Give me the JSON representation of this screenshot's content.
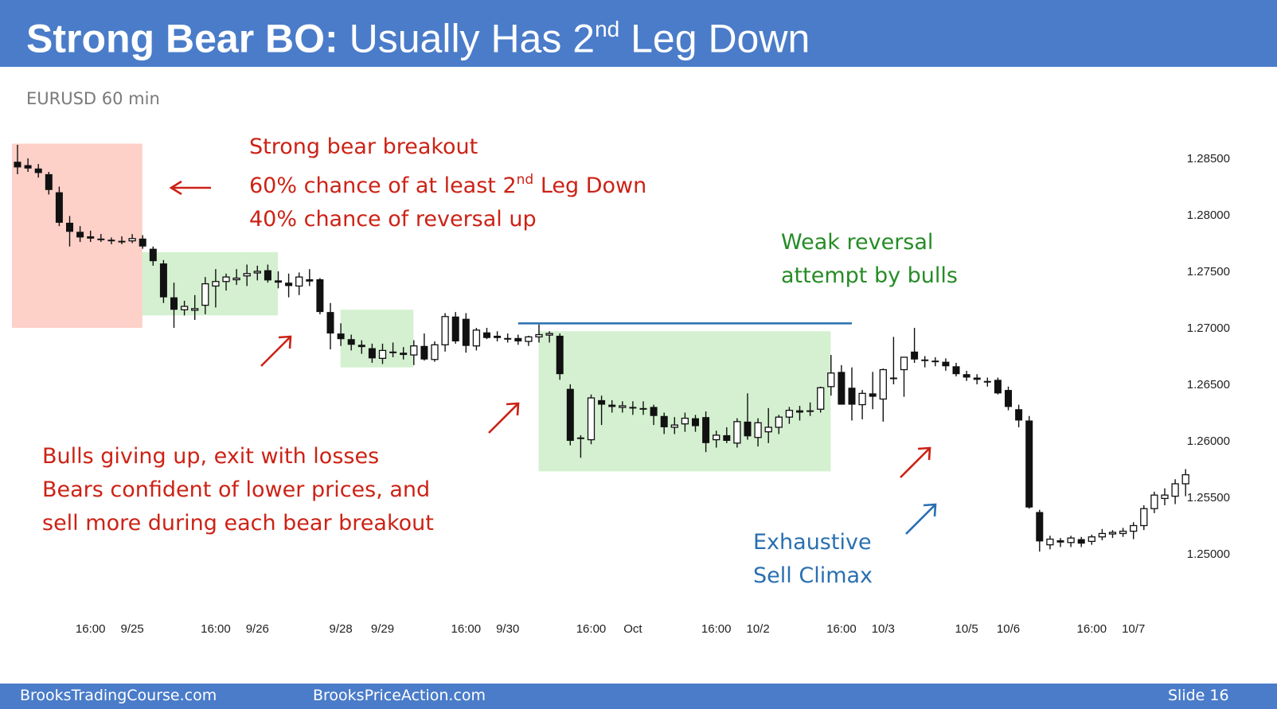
{
  "header": {
    "title_bold": "Strong Bear BO:",
    "title_rest": "Usually Has 2",
    "title_sup": "nd",
    "title_end": "Leg Down"
  },
  "subtitle": "EURUSD 60 min",
  "annotations": {
    "breakout_line1": "Strong bear breakout",
    "breakout_line2_pre": "60% chance of at least 2",
    "breakout_line2_sup": "nd",
    "breakout_line2_post": "Leg Down",
    "breakout_line3": "40% chance of reversal up",
    "weak_line1": "Weak reversal",
    "weak_line2": "attempt by bulls",
    "bulls_line1": "Bulls giving up, exit with losses",
    "bulls_line2": "Bears confident of lower prices, and",
    "bulls_line3": "sell more during each bear breakout",
    "climax_line1": "Exhaustive",
    "climax_line2": "Sell Climax"
  },
  "footer": {
    "left": "BrooksTradingCourse.com",
    "mid": "BrooksPriceAction.com",
    "right": "Slide  16"
  },
  "colors": {
    "header_bg": "#4a7cc9",
    "red_zone": "#fdd0c8",
    "green_zone": "#d4f0d0",
    "resistance_line": "#2a6fb0",
    "red_text": "#cc2216",
    "green_text": "#268c26",
    "blue_text": "#2a6fb0"
  },
  "chart_data": {
    "type": "candlestick",
    "ylim": [
      1.2475,
      1.2868
    ],
    "y_ticks": [
      1.285,
      1.28,
      1.275,
      1.27,
      1.265,
      1.26,
      1.255,
      1.25
    ],
    "y_tick_labels": [
      "1.28500",
      "1.28000",
      "1.27500",
      "1.27000",
      "1.26500",
      "1.26000",
      "1.25500",
      "1.25000"
    ],
    "x_tick_labels": [
      {
        "label": "16:00",
        "bar": 7
      },
      {
        "label": "9/25",
        "bar": 11
      },
      {
        "label": "16:00",
        "bar": 19
      },
      {
        "label": "9/26",
        "bar": 23
      },
      {
        "label": "9/28",
        "bar": 31
      },
      {
        "label": "9/29",
        "bar": 35
      },
      {
        "label": "16:00",
        "bar": 43
      },
      {
        "label": "9/30",
        "bar": 47
      },
      {
        "label": "16:00",
        "bar": 55
      },
      {
        "label": "Oct",
        "bar": 59
      },
      {
        "label": "16:00",
        "bar": 67
      },
      {
        "label": "10/2",
        "bar": 71
      },
      {
        "label": "16:00",
        "bar": 79
      },
      {
        "label": "10/3",
        "bar": 83
      },
      {
        "label": "10/5",
        "bar": 91
      },
      {
        "label": "10/6",
        "bar": 95
      },
      {
        "label": "16:00",
        "bar": 103
      },
      {
        "label": "10/7",
        "bar": 107
      }
    ],
    "zones": [
      {
        "kind": "red",
        "from_bar": 0,
        "to_bar": 12.5,
        "high": 1.2863,
        "low": 1.27
      },
      {
        "kind": "green",
        "from_bar": 12.5,
        "to_bar": 25.5,
        "high": 1.2767,
        "low": 1.2711
      },
      {
        "kind": "green",
        "from_bar": 31.5,
        "to_bar": 38.5,
        "high": 1.2716,
        "low": 1.2665
      },
      {
        "kind": "green",
        "from_bar": 50.5,
        "to_bar": 78.5,
        "high": 1.2697,
        "low": 1.2573
      }
    ],
    "resistance": {
      "price": 1.2704,
      "from_bar": 48,
      "to_bar": 80
    },
    "ohlc": [
      [
        1.2847,
        1.2862,
        1.2836,
        1.2842
      ],
      [
        1.2844,
        1.285,
        1.2838,
        1.2841
      ],
      [
        1.2841,
        1.2845,
        1.2833,
        1.2837
      ],
      [
        1.2836,
        1.2838,
        1.2818,
        1.2822
      ],
      [
        1.282,
        1.2825,
        1.279,
        1.2793
      ],
      [
        1.2793,
        1.2799,
        1.2772,
        1.2785
      ],
      [
        1.2785,
        1.279,
        1.2776,
        1.278
      ],
      [
        1.2781,
        1.2786,
        1.2776,
        1.2779
      ],
      [
        1.2779,
        1.2783,
        1.2776,
        1.2778
      ],
      [
        1.2778,
        1.278,
        1.2774,
        1.2777
      ],
      [
        1.2777,
        1.2781,
        1.2774,
        1.2776
      ],
      [
        1.2777,
        1.2783,
        1.2775,
        1.2779
      ],
      [
        1.2779,
        1.2782,
        1.277,
        1.2772
      ],
      [
        1.277,
        1.2772,
        1.2755,
        1.2759
      ],
      [
        1.2757,
        1.276,
        1.2722,
        1.2727
      ],
      [
        1.2727,
        1.274,
        1.27,
        1.2716
      ],
      [
        1.2716,
        1.2724,
        1.2711,
        1.2719
      ],
      [
        1.2716,
        1.2729,
        1.2707,
        1.2717
      ],
      [
        1.272,
        1.2745,
        1.2712,
        1.2739
      ],
      [
        1.2737,
        1.2752,
        1.2718,
        1.2741
      ],
      [
        1.2741,
        1.2748,
        1.2733,
        1.2745
      ],
      [
        1.2743,
        1.2752,
        1.2738,
        1.2744
      ],
      [
        1.2746,
        1.2756,
        1.2737,
        1.2748
      ],
      [
        1.2749,
        1.2755,
        1.2742,
        1.275
      ],
      [
        1.2751,
        1.2756,
        1.274,
        1.2742
      ],
      [
        1.2742,
        1.275,
        1.2735,
        1.274
      ],
      [
        1.274,
        1.2748,
        1.2727,
        1.2737
      ],
      [
        1.2737,
        1.2749,
        1.2729,
        1.2745
      ],
      [
        1.2743,
        1.2752,
        1.2737,
        1.2741
      ],
      [
        1.2743,
        1.2744,
        1.2712,
        1.2714
      ],
      [
        1.2714,
        1.2722,
        1.2681,
        1.2695
      ],
      [
        1.2695,
        1.2704,
        1.2684,
        1.269
      ],
      [
        1.269,
        1.2694,
        1.268,
        1.2685
      ],
      [
        1.2685,
        1.2689,
        1.2677,
        1.2683
      ],
      [
        1.2682,
        1.2686,
        1.2669,
        1.2673
      ],
      [
        1.2673,
        1.2686,
        1.2668,
        1.268
      ],
      [
        1.2679,
        1.2687,
        1.2674,
        1.2678
      ],
      [
        1.2678,
        1.2683,
        1.2672,
        1.2676
      ],
      [
        1.2676,
        1.2689,
        1.2667,
        1.2684
      ],
      [
        1.2684,
        1.2695,
        1.2671,
        1.2672
      ],
      [
        1.2672,
        1.2688,
        1.267,
        1.2685
      ],
      [
        1.2685,
        1.2713,
        1.2679,
        1.271
      ],
      [
        1.271,
        1.2714,
        1.2686,
        1.2688
      ],
      [
        1.2708,
        1.2713,
        1.2678,
        1.2684
      ],
      [
        1.2684,
        1.27,
        1.268,
        1.2698
      ],
      [
        1.2696,
        1.27,
        1.269,
        1.2691
      ],
      [
        1.2693,
        1.2697,
        1.2688,
        1.2691
      ],
      [
        1.2691,
        1.2695,
        1.2687,
        1.269
      ],
      [
        1.2691,
        1.2694,
        1.2685,
        1.2688
      ],
      [
        1.2688,
        1.2693,
        1.2684,
        1.2692
      ],
      [
        1.2692,
        1.2703,
        1.2687,
        1.2694
      ],
      [
        1.2694,
        1.2697,
        1.2687,
        1.2695
      ],
      [
        1.2693,
        1.2695,
        1.2654,
        1.2659
      ],
      [
        1.2646,
        1.265,
        1.2596,
        1.26
      ],
      [
        1.2603,
        1.2605,
        1.2585,
        1.2602
      ],
      [
        1.2601,
        1.2641,
        1.2597,
        1.2638
      ],
      [
        1.2636,
        1.264,
        1.2614,
        1.2632
      ],
      [
        1.2632,
        1.2636,
        1.2625,
        1.263
      ],
      [
        1.263,
        1.2635,
        1.2625,
        1.2631
      ],
      [
        1.263,
        1.2635,
        1.2623,
        1.2629
      ],
      [
        1.2629,
        1.2635,
        1.2623,
        1.2628
      ],
      [
        1.263,
        1.2632,
        1.2614,
        1.2622
      ],
      [
        1.2622,
        1.2625,
        1.2606,
        1.2612
      ],
      [
        1.2612,
        1.2621,
        1.2606,
        1.2614
      ],
      [
        1.2615,
        1.2625,
        1.2608,
        1.262
      ],
      [
        1.262,
        1.2623,
        1.2608,
        1.2613
      ],
      [
        1.2621,
        1.2626,
        1.259,
        1.2598
      ],
      [
        1.2601,
        1.2609,
        1.2594,
        1.2605
      ],
      [
        1.2605,
        1.2612,
        1.2598,
        1.26
      ],
      [
        1.2598,
        1.262,
        1.2594,
        1.2617
      ],
      [
        1.2617,
        1.2642,
        1.2601,
        1.2604
      ],
      [
        1.2603,
        1.262,
        1.2595,
        1.2616
      ],
      [
        1.2608,
        1.2629,
        1.2598,
        1.2612
      ],
      [
        1.2612,
        1.2623,
        1.2606,
        1.2621
      ],
      [
        1.2621,
        1.263,
        1.2615,
        1.2627
      ],
      [
        1.2627,
        1.2631,
        1.2618,
        1.2625
      ],
      [
        1.2627,
        1.2634,
        1.2622,
        1.2626
      ],
      [
        1.2628,
        1.2648,
        1.2625,
        1.2647
      ],
      [
        1.2648,
        1.2676,
        1.264,
        1.266
      ],
      [
        1.2661,
        1.2667,
        1.2632,
        1.2632
      ],
      [
        1.2647,
        1.2665,
        1.2618,
        1.2632
      ],
      [
        1.2632,
        1.2645,
        1.2619,
        1.2642
      ],
      [
        1.2642,
        1.2661,
        1.2628,
        1.2639
      ],
      [
        1.2637,
        1.2664,
        1.2617,
        1.2663
      ],
      [
        1.2656,
        1.2692,
        1.265,
        1.2655
      ],
      [
        1.2663,
        1.2673,
        1.2639,
        1.2674
      ],
      [
        1.2679,
        1.27,
        1.2669,
        1.2672
      ],
      [
        1.2672,
        1.2675,
        1.2665,
        1.2671
      ],
      [
        1.2671,
        1.2674,
        1.2666,
        1.267
      ],
      [
        1.267,
        1.2673,
        1.2662,
        1.2666
      ],
      [
        1.2666,
        1.2669,
        1.2657,
        1.2659
      ],
      [
        1.2659,
        1.2662,
        1.2653,
        1.2656
      ],
      [
        1.2656,
        1.2659,
        1.265,
        1.2654
      ],
      [
        1.2653,
        1.2656,
        1.2648,
        1.2652
      ],
      [
        1.2654,
        1.2656,
        1.2641,
        1.2642
      ],
      [
        1.2645,
        1.2648,
        1.2627,
        1.263
      ],
      [
        1.2628,
        1.2632,
        1.2612,
        1.2618
      ],
      [
        1.2618,
        1.2622,
        1.254,
        1.2541
      ],
      [
        1.2537,
        1.2539,
        1.2502,
        1.2511
      ],
      [
        1.2508,
        1.2516,
        1.2504,
        1.2513
      ],
      [
        1.2512,
        1.2514,
        1.2506,
        1.251
      ],
      [
        1.251,
        1.2516,
        1.2506,
        1.2514
      ],
      [
        1.2513,
        1.2515,
        1.2506,
        1.2509
      ],
      [
        1.2511,
        1.2517,
        1.2508,
        1.2515
      ],
      [
        1.2515,
        1.2522,
        1.2512,
        1.2518
      ],
      [
        1.2518,
        1.2521,
        1.2514,
        1.2519
      ],
      [
        1.2518,
        1.2523,
        1.2515,
        1.252
      ],
      [
        1.252,
        1.2528,
        1.2513,
        1.2525
      ],
      [
        1.2525,
        1.2543,
        1.2521,
        1.254
      ],
      [
        1.254,
        1.2555,
        1.2536,
        1.2552
      ],
      [
        1.2549,
        1.2558,
        1.2543,
        1.2552
      ],
      [
        1.2551,
        1.2566,
        1.2544,
        1.2562
      ],
      [
        1.2562,
        1.2575,
        1.2551,
        1.257
      ]
    ]
  }
}
